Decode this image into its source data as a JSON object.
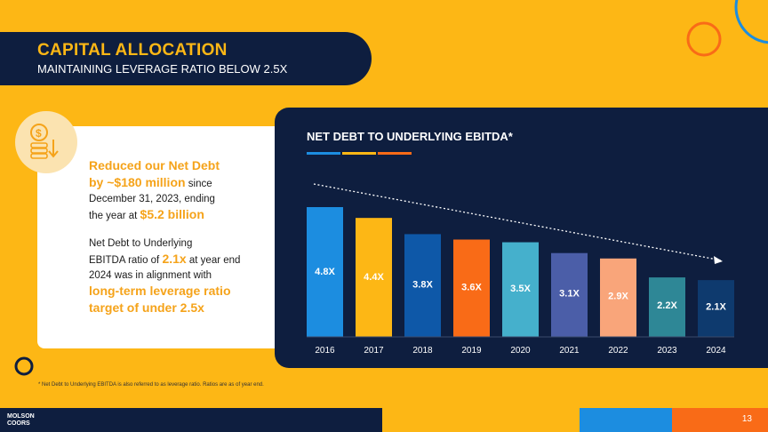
{
  "header": {
    "title": "CAPITAL ALLOCATION",
    "subtitle": "MAINTAINING LEVERAGE RATIO BELOW 2.5X"
  },
  "card": {
    "h1": "Reduced our Net Debt",
    "h2a": "by ~$180 million",
    "h2b": " since",
    "l3": "December 31, 2023, ending",
    "l4a": "the year at ",
    "l4b": "$5.2 billion",
    "p2a": "Net Debt to Underlying",
    "p2b": "EBITDA ratio of ",
    "p2c": "2.1x",
    "p2d": " at year end",
    "p2e": "2024 was in alignment with",
    "p2f": "long-term leverage ratio",
    "p2g": "target of under 2.5x"
  },
  "chart_data": {
    "type": "bar",
    "title": "NET DEBT TO UNDERLYING EBITDA*",
    "categories": [
      "2016",
      "2017",
      "2018",
      "2019",
      "2020",
      "2021",
      "2022",
      "2023",
      "2024"
    ],
    "values": [
      4.8,
      4.4,
      3.8,
      3.6,
      3.5,
      3.1,
      2.9,
      2.2,
      2.1
    ],
    "labels": [
      "4.8X",
      "4.4X",
      "3.8X",
      "3.6X",
      "3.5X",
      "3.1X",
      "2.9X",
      "2.2X",
      "2.1X"
    ],
    "colors": [
      "#1C8DE0",
      "#FDB715",
      "#0E58A8",
      "#F96B17",
      "#45B0CC",
      "#4B5EA8",
      "#F9A57A",
      "#2E8796",
      "#0E3A6E"
    ],
    "ylim": [
      0,
      5.5
    ],
    "trend": "dotted downward arrow"
  },
  "colors": {
    "navy": "#0E1E3F",
    "gold": "#FDB715",
    "orange": "#F96B17",
    "blue": "#1C8DE0"
  },
  "footnote": "* Net Debt to Underlying EBITDA is also referred to as leverage ratio. Ratios are as of year end.",
  "footer": {
    "logo1": "MOLSON",
    "logo2": "COORS",
    "page": "13"
  }
}
